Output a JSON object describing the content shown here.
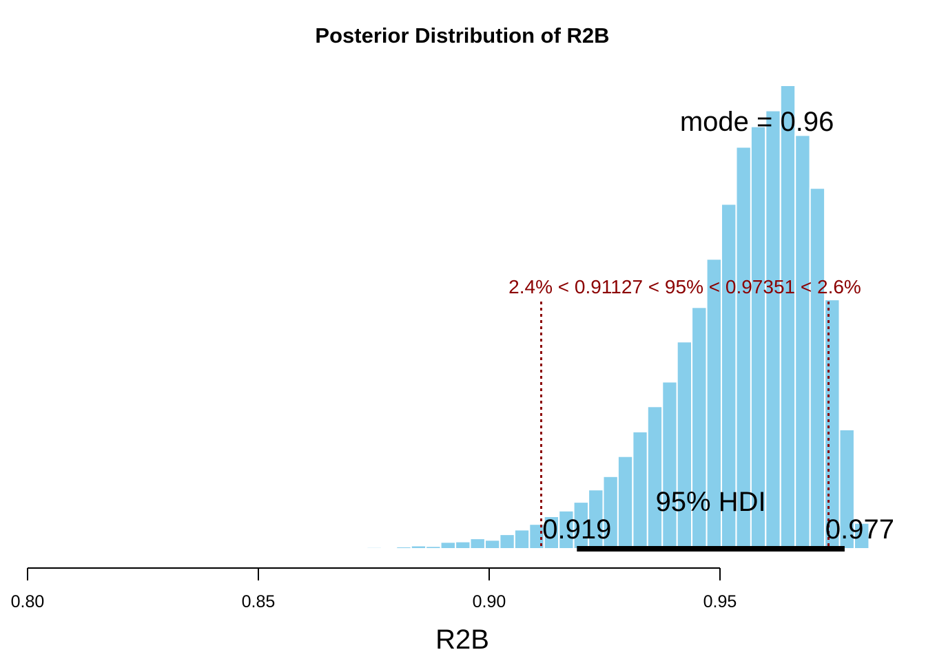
{
  "chart_data": {
    "type": "bar",
    "title": "Posterior Distribution of R2B",
    "xlabel": "R2B",
    "ylabel": "",
    "xlim": [
      0.8,
      0.99
    ],
    "x_ticks": [
      "0.80",
      "0.85",
      "0.90",
      "0.95"
    ],
    "x_tick_values": [
      0.8,
      0.85,
      0.9,
      0.95
    ],
    "bar_color": "#87ceeb",
    "bin_width": 0.0032,
    "bin_starts": [
      0.8735,
      0.8767,
      0.8799,
      0.8831,
      0.8863,
      0.8895,
      0.8927,
      0.8959,
      0.8991,
      0.9023,
      0.9055,
      0.9087,
      0.9119,
      0.9151,
      0.9183,
      0.9215,
      0.9247,
      0.9279,
      0.9311,
      0.9343,
      0.9375,
      0.9407,
      0.9439,
      0.9471,
      0.9503,
      0.9535,
      0.9567,
      0.9599,
      0.9631,
      0.9663,
      0.9695,
      0.9727,
      0.9759,
      0.9791
    ],
    "values": [
      0.3,
      0.2,
      0.4,
      0.6,
      0.5,
      1.3,
      1.4,
      2.0,
      1.7,
      2.8,
      3.7,
      4.8,
      6.3,
      7.4,
      9.1,
      11.5,
      14.1,
      18.0,
      22.8,
      27.7,
      32.5,
      40.3,
      47.0,
      56.4,
      67.1,
      78.2,
      82.2,
      85.3,
      90.2,
      80.5,
      70.2,
      48.5,
      23.2,
      5.0
    ],
    "ymax": 100,
    "mode_label": "mode = 0.96",
    "mode_label_x": 0.958,
    "hdi_label": "95% HDI",
    "hdi_lower": 0.919,
    "hdi_upper": 0.977,
    "hdi_lower_label": "0.919",
    "hdi_upper_label": "0.977",
    "rope_label": "2.4% < 0.91127 < 95% < 0.97351 < 2.6%",
    "rope_lower": 0.91127,
    "rope_upper": 0.97351,
    "rope_color": "#8b0000",
    "hdi_color": "#000000"
  }
}
